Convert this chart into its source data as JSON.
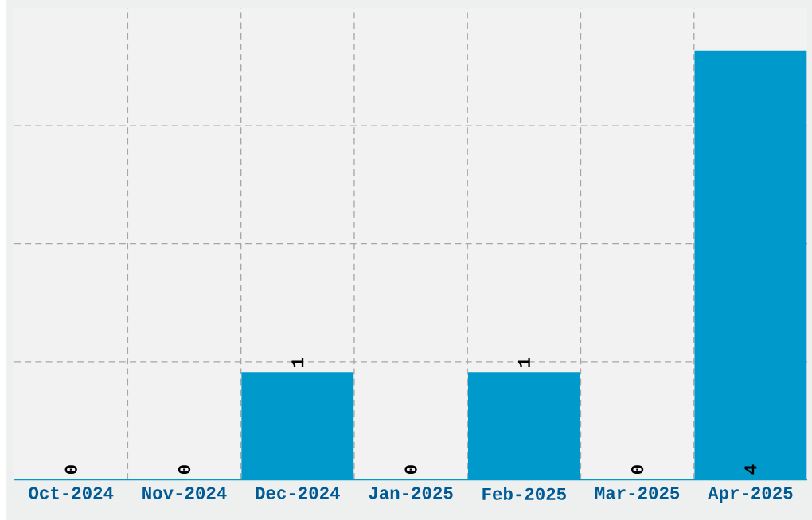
{
  "chart_data": {
    "type": "bar",
    "categories": [
      "Oct-2024",
      "Nov-2024",
      "Dec-2024",
      "Jan-2025",
      "Feb-2025",
      "Mar-2025",
      "Apr-2025"
    ],
    "values": [
      0,
      0,
      1,
      0,
      1,
      0,
      4
    ],
    "color": "#0099cc",
    "ylim": [
      0,
      4.4
    ],
    "yticks": [
      {
        "value": 1.1,
        "label": null
      },
      {
        "value": 2.2,
        "label": null
      },
      {
        "value": 3.3,
        "label": null
      }
    ],
    "tick_labels": "x",
    "grid": true,
    "data_labels": true
  }
}
